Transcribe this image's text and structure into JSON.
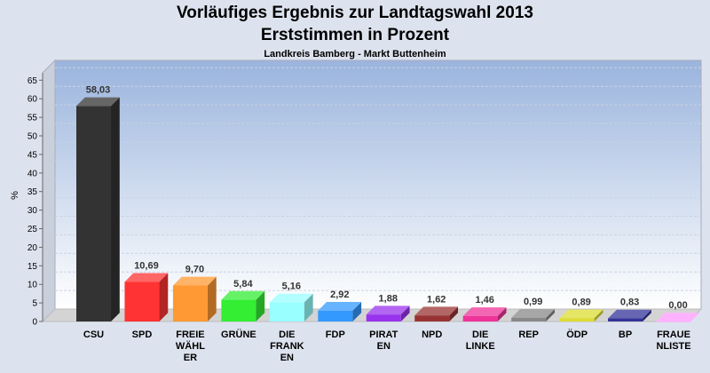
{
  "header": {
    "title_line1": "Vorläufiges Ergebnis zur Landtagswahl 2013",
    "title_line2": "Erststimmen in Prozent",
    "subtitle": "Landkreis Bamberg - Markt Buttenheim"
  },
  "chart_data": {
    "type": "bar",
    "title": "Vorläufiges Ergebnis zur Landtagswahl 2013 Erststimmen in Prozent",
    "subtitle": "Landkreis Bamberg - Markt Buttenheim",
    "xlabel": "",
    "ylabel": "%",
    "ylim": [
      0,
      67
    ],
    "yticks": [
      0,
      5,
      10,
      15,
      20,
      25,
      30,
      35,
      40,
      45,
      50,
      55,
      60,
      65
    ],
    "grid": true,
    "categories": [
      [
        "CSU"
      ],
      [
        "SPD"
      ],
      [
        "FREIE",
        "WÄHL",
        "ER"
      ],
      [
        "GRÜNE"
      ],
      [
        "DIE",
        "FRANK",
        "EN"
      ],
      [
        "FDP"
      ],
      [
        "PIRAT",
        "EN"
      ],
      [
        "NPD"
      ],
      [
        "DIE",
        "LINKE"
      ],
      [
        "REP"
      ],
      [
        "ÖDP"
      ],
      [
        "BP"
      ],
      [
        "FRAUE",
        "NLISTE"
      ]
    ],
    "values": [
      58.03,
      10.69,
      9.7,
      5.84,
      5.16,
      2.92,
      1.88,
      1.62,
      1.46,
      0.99,
      0.89,
      0.83,
      0.0
    ],
    "value_labels": [
      "58,03",
      "10,69",
      "9,70",
      "5,84",
      "5,16",
      "2,92",
      "1,88",
      "1,62",
      "1,46",
      "0,99",
      "0,89",
      "0,83",
      "0,00"
    ],
    "colors": [
      "#333333",
      "#ff3333",
      "#ff9933",
      "#33ee33",
      "#99ffff",
      "#3399ff",
      "#9933ee",
      "#993333",
      "#ee3399",
      "#888888",
      "#dddd33",
      "#333399",
      "#ff99ff"
    ]
  }
}
